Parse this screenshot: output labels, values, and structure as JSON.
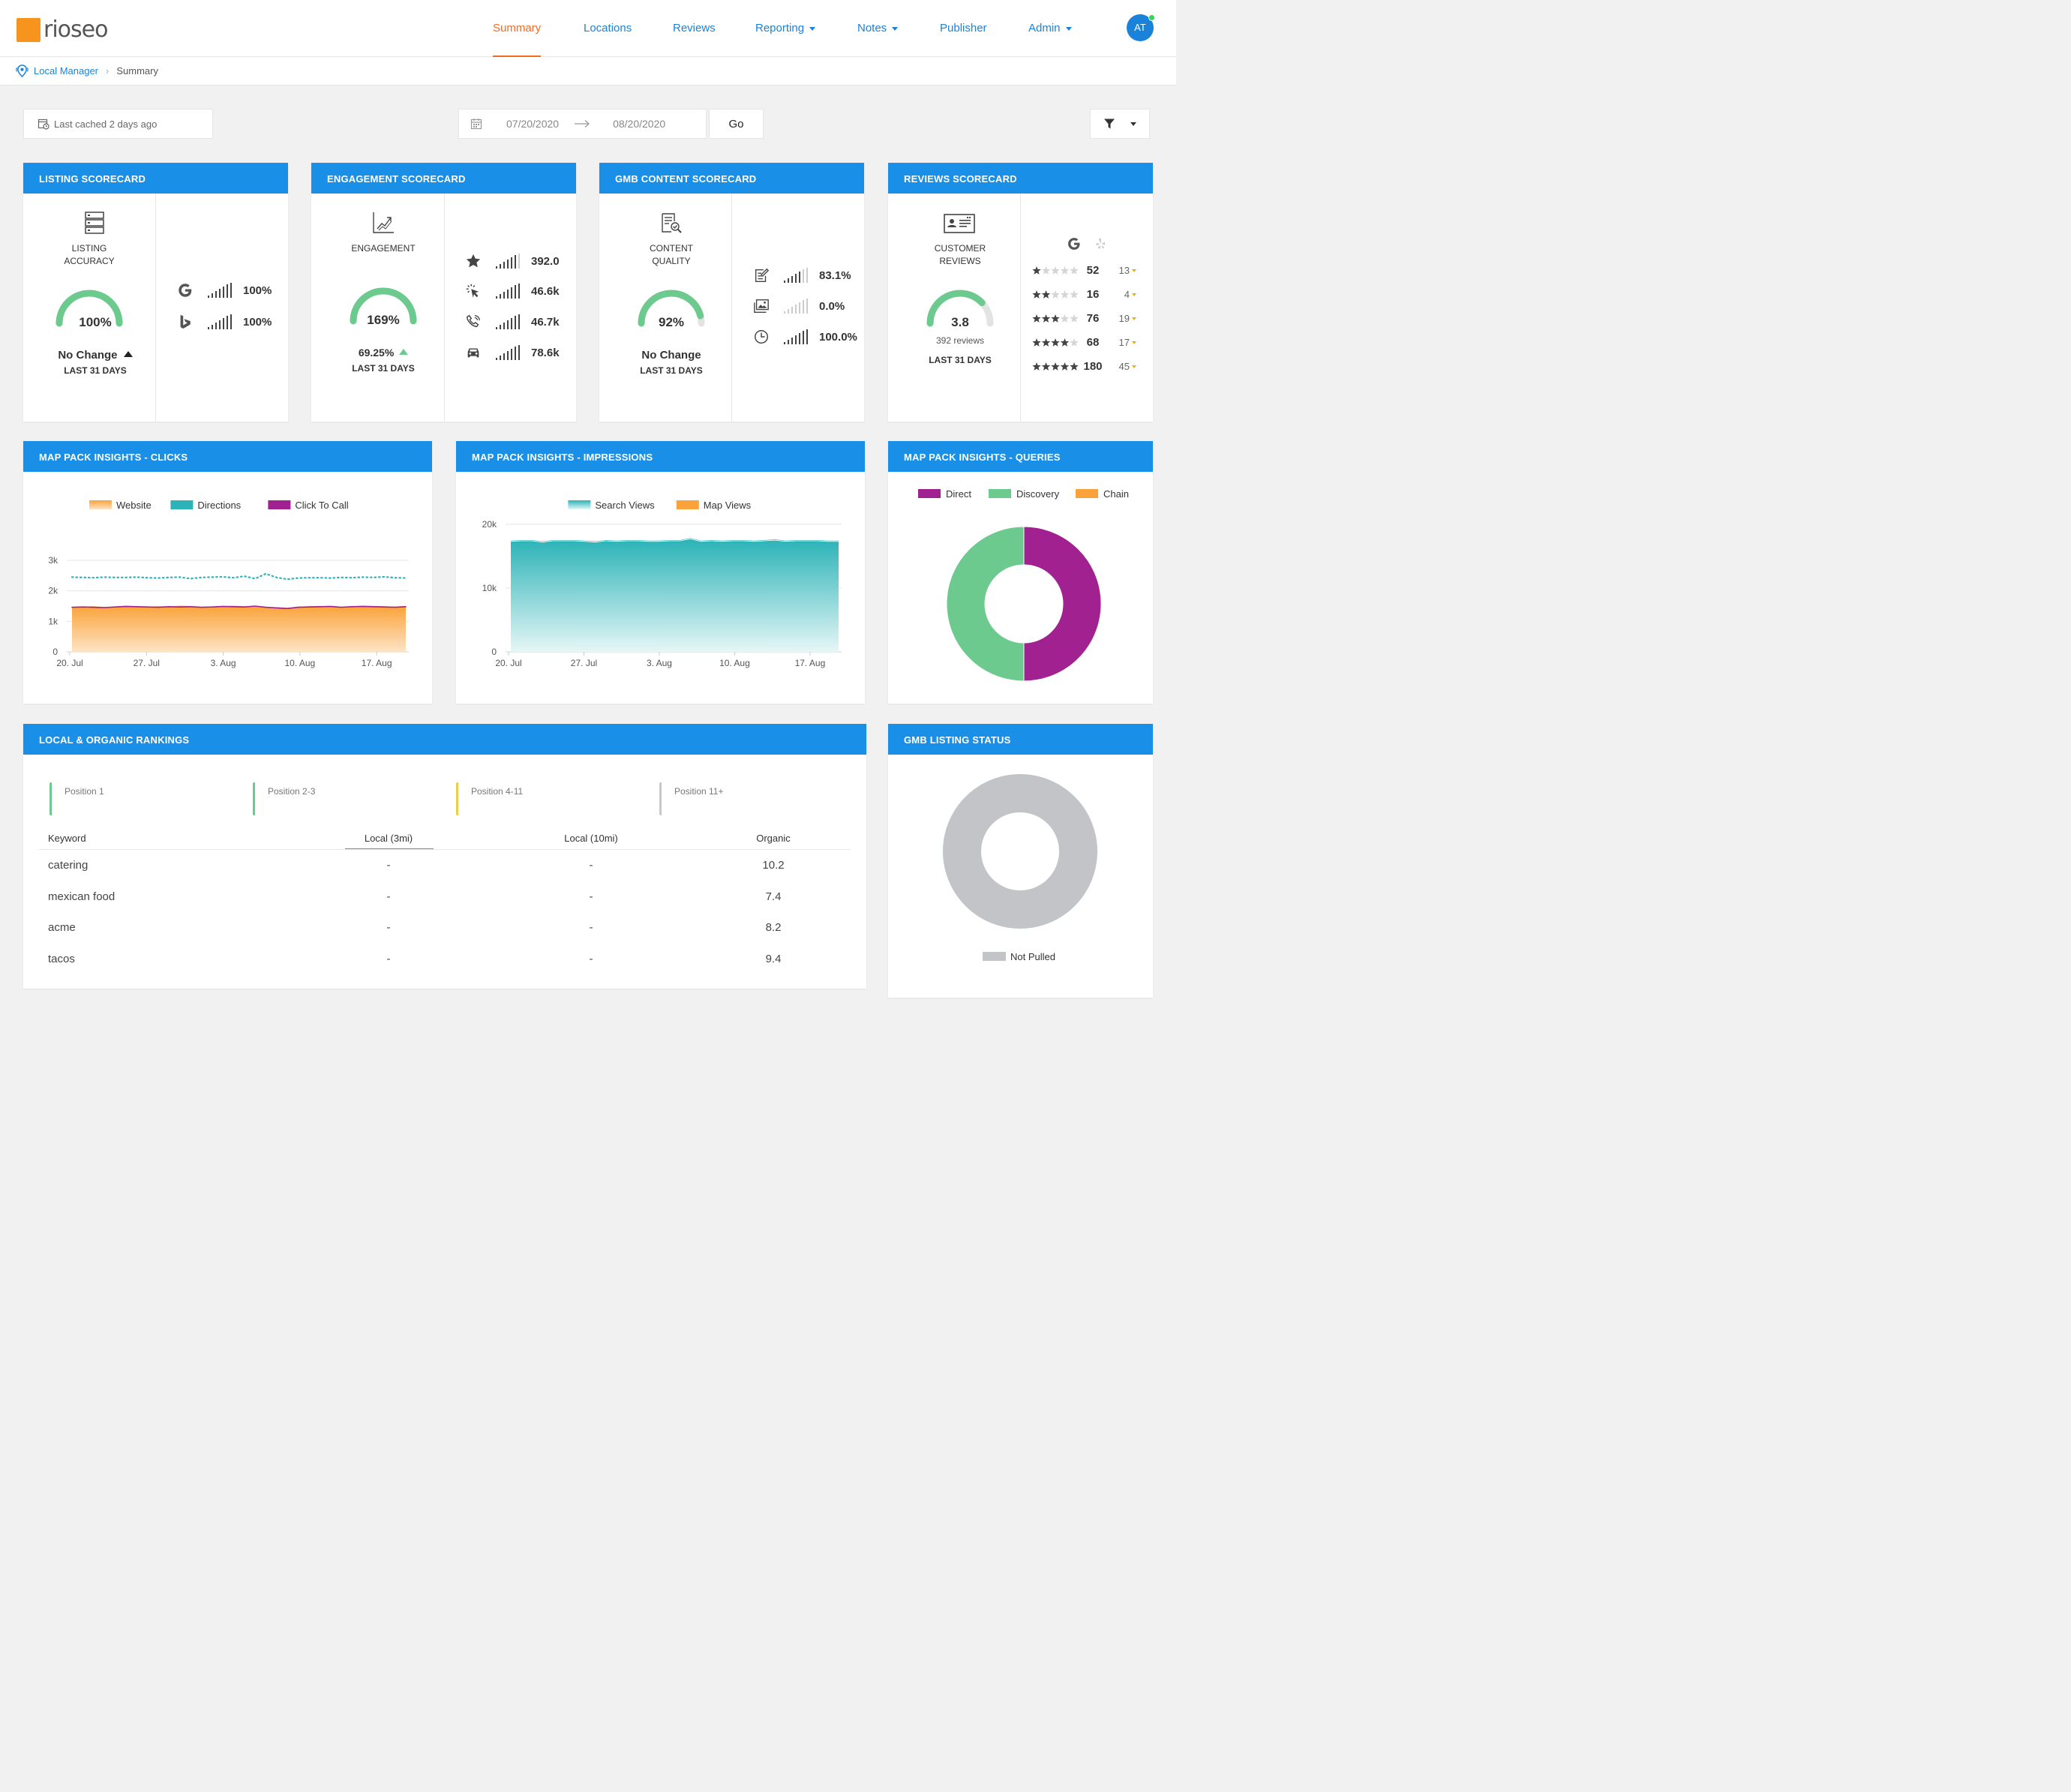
{
  "header": {
    "logo_text": "rioseo",
    "nav": [
      {
        "label": "Summary",
        "active": true,
        "dropdown": false
      },
      {
        "label": "Locations",
        "active": false,
        "dropdown": false
      },
      {
        "label": "Reviews",
        "active": false,
        "dropdown": false
      },
      {
        "label": "Reporting",
        "active": false,
        "dropdown": true
      },
      {
        "label": "Notes",
        "active": false,
        "dropdown": true
      },
      {
        "label": "Publisher",
        "active": false,
        "dropdown": false
      },
      {
        "label": "Admin",
        "active": false,
        "dropdown": true
      }
    ],
    "avatar_initials": "AT"
  },
  "breadcrumb": {
    "root": "Local Manager",
    "current": "Summary"
  },
  "toolbar": {
    "cache_text": "Last cached 2 days ago",
    "date_start": "07/20/2020",
    "date_end": "08/20/2020",
    "go_label": "Go"
  },
  "colors": {
    "header_blue": "#1a8fe8",
    "active_orange": "#f26b21",
    "gauge_green": "#6cca8e",
    "website_orange": "#fba33a",
    "directions_teal": "#2bb3b7",
    "click_to_call_purple": "#a0218f",
    "discovery_green": "#6cca8e",
    "chain_orange": "#fba33a",
    "not_pulled_gray": "#c2c4c7"
  },
  "listing_scorecard": {
    "title": "LISTING SCORECARD",
    "icon": "server-icon",
    "label_line1": "LISTING",
    "label_line2": "ACCURACY",
    "gauge_value": "100%",
    "gauge_fraction": 1.0,
    "change_text": "No Change",
    "period": "LAST 31 DAYS",
    "metrics": [
      {
        "icon": "google-icon",
        "value": "100%"
      },
      {
        "icon": "bing-icon",
        "value": "100%"
      }
    ]
  },
  "engagement_scorecard": {
    "title": "ENGAGEMENT SCORECARD",
    "icon": "trend-chart-icon",
    "label": "ENGAGEMENT",
    "gauge_value": "169%",
    "gauge_fraction": 1.0,
    "change_text": "69.25%",
    "period": "LAST 31 DAYS",
    "metrics": [
      {
        "icon": "star-icon",
        "value": "392.0"
      },
      {
        "icon": "click-icon",
        "value": "46.6k"
      },
      {
        "icon": "phone-icon",
        "value": "46.7k"
      },
      {
        "icon": "car-icon",
        "value": "78.6k"
      }
    ]
  },
  "gmb_content_scorecard": {
    "title": "GMB CONTENT SCORECARD",
    "icon": "document-search-icon",
    "label_line1": "CONTENT",
    "label_line2": "QUALITY",
    "gauge_value": "92%",
    "gauge_fraction": 0.92,
    "change_text": "No Change",
    "period": "LAST 31 DAYS",
    "metrics": [
      {
        "icon": "edit-icon",
        "value": "83.1%",
        "bars_active": true
      },
      {
        "icon": "images-icon",
        "value": "0.0%",
        "bars_active": false
      },
      {
        "icon": "clock-icon",
        "value": "100.0%",
        "bars_active": true
      }
    ]
  },
  "reviews_scorecard": {
    "title": "REVIEWS SCORECARD",
    "icon": "id-card-icon",
    "label_line1": "CUSTOMER",
    "label_line2": "REVIEWS",
    "gauge_value": "3.8",
    "gauge_fraction": 0.76,
    "sub_text": "392 reviews",
    "period": "LAST 31 DAYS",
    "rows": [
      {
        "stars": 1,
        "google": "52",
        "yelp": "13"
      },
      {
        "stars": 2,
        "google": "16",
        "yelp": "4"
      },
      {
        "stars": 3,
        "google": "76",
        "yelp": "19"
      },
      {
        "stars": 4,
        "google": "68",
        "yelp": "17"
      },
      {
        "stars": 5,
        "google": "180",
        "yelp": "45"
      }
    ]
  },
  "clicks_card": {
    "title": "MAP PACK INSIGHTS - CLICKS"
  },
  "impressions_card": {
    "title": "MAP PACK INSIGHTS - IMPRESSIONS"
  },
  "queries_card": {
    "title": "MAP PACK INSIGHTS - QUERIES"
  },
  "rankings_card": {
    "title": "LOCAL & ORGANIC RANKINGS",
    "positions": [
      {
        "label": "Position 1",
        "color": "#6cca8e"
      },
      {
        "label": "Position 2-3",
        "color": "#6cca8e"
      },
      {
        "label": "Position 4-11",
        "color": "#e8cf4a"
      },
      {
        "label": "Position 11+",
        "color": "#c8c8c8"
      }
    ],
    "columns": [
      "Keyword",
      "Local (3mi)",
      "Local (10mi)",
      "Organic"
    ],
    "rows": [
      {
        "keyword": "catering",
        "local3": "-",
        "local10": "-",
        "organic": "10.2"
      },
      {
        "keyword": "mexican food",
        "local3": "-",
        "local10": "-",
        "organic": "7.4"
      },
      {
        "keyword": "acme",
        "local3": "-",
        "local10": "-",
        "organic": "8.2"
      },
      {
        "keyword": "tacos",
        "local3": "-",
        "local10": "-",
        "organic": "9.4"
      }
    ]
  },
  "gmb_status_card": {
    "title": "GMB LISTING STATUS"
  },
  "chart_data": [
    {
      "type": "area",
      "chart": "clicks",
      "x_tick_labels": [
        "20. Jul",
        "27. Jul",
        "3. Aug",
        "10. Aug",
        "17. Aug"
      ],
      "x_start": "2020-07-20",
      "x_end": "2020-08-20",
      "ylim": [
        0,
        3000
      ],
      "y_tick_labels": [
        "0",
        "1k",
        "2k",
        "3k"
      ],
      "legend": [
        "Website",
        "Directions",
        "Click To Call"
      ],
      "series": [
        {
          "name": "Website",
          "kind": "area",
          "values": [
            1460,
            1470,
            1480,
            1460,
            1470,
            1500,
            1480,
            1470,
            1480,
            1470,
            1500,
            1490,
            1460,
            1470,
            1480,
            1500,
            1480,
            1470,
            1460,
            1450,
            1430,
            1470,
            1480,
            1490,
            1470,
            1460,
            1480,
            1500,
            1490,
            1480,
            1470,
            1490
          ]
        },
        {
          "name": "Directions",
          "kind": "dotted-line",
          "values": [
            2450,
            2440,
            2430,
            2450,
            2440,
            2440,
            2450,
            2430,
            2420,
            2440,
            2450,
            2400,
            2440,
            2450,
            2460,
            2430,
            2480,
            2400,
            2560,
            2440,
            2380,
            2420,
            2430,
            2430,
            2420,
            2440,
            2430,
            2450,
            2440,
            2460,
            2430,
            2420
          ]
        },
        {
          "name": "Click To Call",
          "kind": "line",
          "values": [
            1460,
            1470,
            1460,
            1450,
            1470,
            1490,
            1480,
            1470,
            1460,
            1480,
            1470,
            1480,
            1460,
            1470,
            1490,
            1480,
            1470,
            1500,
            1460,
            1440,
            1420,
            1460,
            1470,
            1480,
            1490,
            1460,
            1480,
            1490,
            1480,
            1470,
            1460,
            1480
          ]
        }
      ]
    },
    {
      "type": "area",
      "chart": "impressions",
      "x_tick_labels": [
        "20. Jul",
        "27. Jul",
        "3. Aug",
        "10. Aug",
        "17. Aug"
      ],
      "x_start": "2020-07-20",
      "x_end": "2020-08-20",
      "ylim": [
        0,
        20000
      ],
      "y_tick_labels": [
        "0",
        "10k",
        "20k"
      ],
      "legend": [
        "Search Views",
        "Map Views"
      ],
      "series": [
        {
          "name": "Search Views",
          "kind": "area",
          "values": [
            17200,
            17300,
            17300,
            17100,
            17300,
            17300,
            17300,
            17200,
            17100,
            17300,
            17200,
            17300,
            17300,
            17200,
            17200,
            17300,
            17300,
            17600,
            17200,
            17300,
            17200,
            17300,
            17300,
            17200,
            17300,
            17400,
            17200,
            17300,
            17300,
            17300,
            17200,
            17200
          ]
        },
        {
          "name": "Map Views",
          "kind": "area",
          "values": [
            17400,
            17500,
            17500,
            17300,
            17500,
            17500,
            17500,
            17400,
            17300,
            17500,
            17400,
            17500,
            17500,
            17400,
            17400,
            17500,
            17500,
            17800,
            17400,
            17500,
            17400,
            17500,
            17500,
            17400,
            17500,
            17600,
            17400,
            17500,
            17500,
            17500,
            17400,
            17400
          ]
        }
      ]
    },
    {
      "type": "pie",
      "chart": "queries",
      "donut": true,
      "legend": [
        "Direct",
        "Discovery",
        "Chain"
      ],
      "values": [
        50,
        50,
        0
      ]
    },
    {
      "type": "pie",
      "chart": "gmb-status",
      "donut": true,
      "legend": [
        "Not Pulled"
      ],
      "values": [
        100
      ]
    }
  ]
}
